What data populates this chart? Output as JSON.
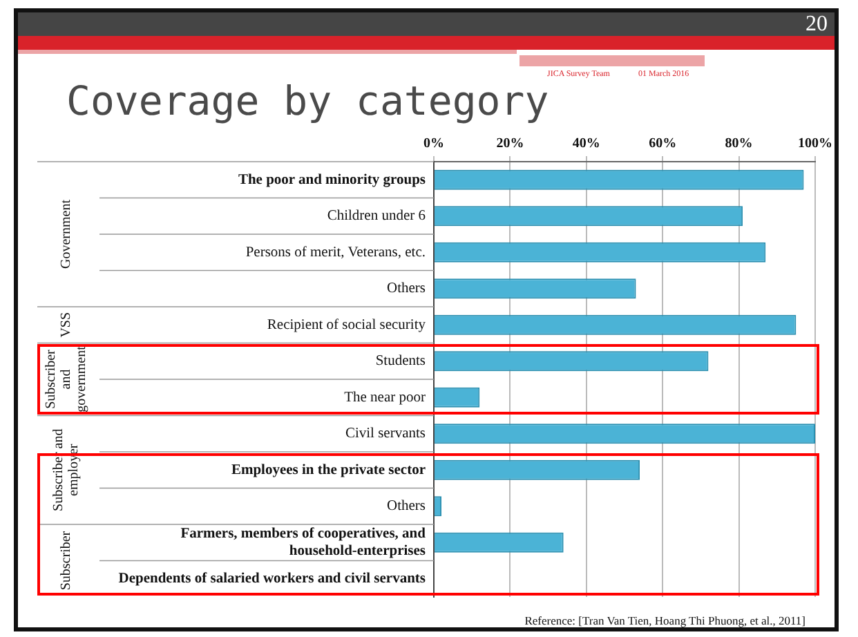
{
  "chart_data": {
    "type": "bar",
    "orientation": "horizontal",
    "title": "Coverage by category",
    "categories": [
      "The poor and minority groups",
      "Children under 6",
      "Persons of merit, Veterans, etc.",
      "Others",
      "Recipient of social security",
      "Students",
      "The near poor",
      "Civil servants",
      "Employees in the private sector",
      "Others",
      "Farmers, members of cooperatives, and household-enterprises",
      "Dependents of salaried workers and civil servants"
    ],
    "values": [
      97,
      81,
      87,
      53,
      95,
      72,
      12,
      100,
      54,
      2,
      34,
      null
    ],
    "color": "#4bb3d6",
    "xlim": [
      0,
      100
    ],
    "xticks": [
      {
        "value": 0,
        "label": "0%"
      },
      {
        "value": 20,
        "label": "20%"
      },
      {
        "value": 40,
        "label": "40%"
      },
      {
        "value": 60,
        "label": "60%"
      },
      {
        "value": 80,
        "label": "80%"
      },
      {
        "value": 100,
        "label": "100%"
      }
    ],
    "grid": "x",
    "legend": false,
    "annotations": [
      "20",
      "JICA Survey Team",
      "01 March 2016",
      "Government",
      "VSS",
      "Subscriber and government",
      "Subscriber and employer",
      "Subscriber",
      "Reference:  [Tran Van Tien, Hoang Thi Phuong, et al., 2011]"
    ]
  }
}
